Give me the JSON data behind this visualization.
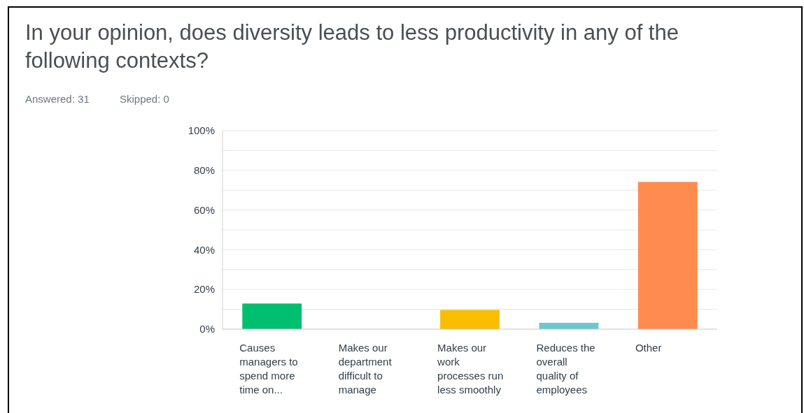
{
  "chart_data": {
    "type": "bar",
    "title": "In your opinion, does diversity leads to less productivity in any of the following contexts?",
    "annotations": [
      "Answered: 31",
      "Skipped: 0"
    ],
    "categories": [
      "Causes managers to spend more time on...",
      "Makes our department difficult to manage",
      "Makes our work processes run less smoothly",
      "Reduces the overall quality of employees",
      "Other"
    ],
    "values": [
      12.9,
      0,
      9.7,
      3.2,
      74.2
    ],
    "colors": [
      "#00bf6f",
      "#507cb6",
      "#f9be00",
      "#6bc8cd",
      "#ff8b4f"
    ],
    "ylim": [
      0,
      100
    ],
    "yticks": [
      {
        "value": 0,
        "label": "0%"
      },
      {
        "value": 10,
        "label": null
      },
      {
        "value": 20,
        "label": "20%"
      },
      {
        "value": 30,
        "label": null
      },
      {
        "value": 40,
        "label": "40%"
      },
      {
        "value": 50,
        "label": null
      },
      {
        "value": 60,
        "label": "60%"
      },
      {
        "value": 70,
        "label": null
      },
      {
        "value": 80,
        "label": "80%"
      },
      {
        "value": 90,
        "label": null
      },
      {
        "value": 100,
        "label": "100%"
      }
    ],
    "grid": "y"
  }
}
